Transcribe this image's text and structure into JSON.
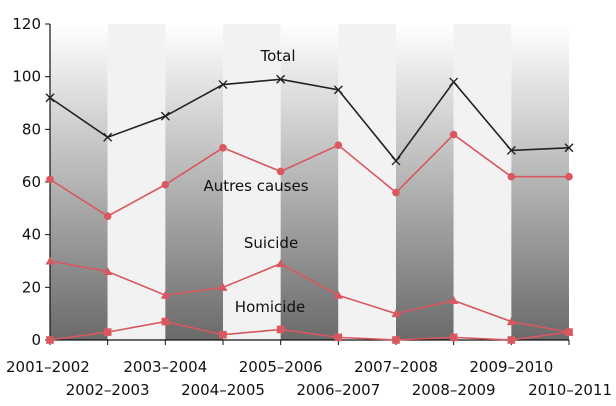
{
  "chart_data": {
    "type": "line",
    "categories": [
      "2001-2002",
      "2002-2003",
      "2003-2004",
      "2004-2005",
      "2005-2006",
      "2006-2007",
      "2007-2008",
      "2008-2009",
      "2009-2010",
      "2010-2011"
    ],
    "ylim": [
      0,
      120
    ],
    "yticks": [
      0,
      20,
      40,
      60,
      80,
      100,
      120
    ],
    "grid": false,
    "background": "alternating shaded column bands",
    "series": [
      {
        "name": "Total",
        "color": "#222222",
        "marker": "x",
        "values": [
          92,
          77,
          85,
          97,
          99,
          95,
          68,
          98,
          72,
          73
        ]
      },
      {
        "name": "Autres causes",
        "color": "#d9575f",
        "marker": "circle",
        "values": [
          61,
          47,
          59,
          73,
          64,
          74,
          56,
          78,
          62,
          62
        ]
      },
      {
        "name": "Suicide",
        "color": "#d9575f",
        "marker": "triangle",
        "values": [
          30,
          26,
          17,
          20,
          29,
          17,
          10,
          15,
          7,
          3
        ]
      },
      {
        "name": "Homicide",
        "color": "#d9575f",
        "marker": "square",
        "values": [
          0,
          3,
          7,
          2,
          4,
          1,
          0,
          1,
          0,
          3
        ]
      }
    ]
  }
}
